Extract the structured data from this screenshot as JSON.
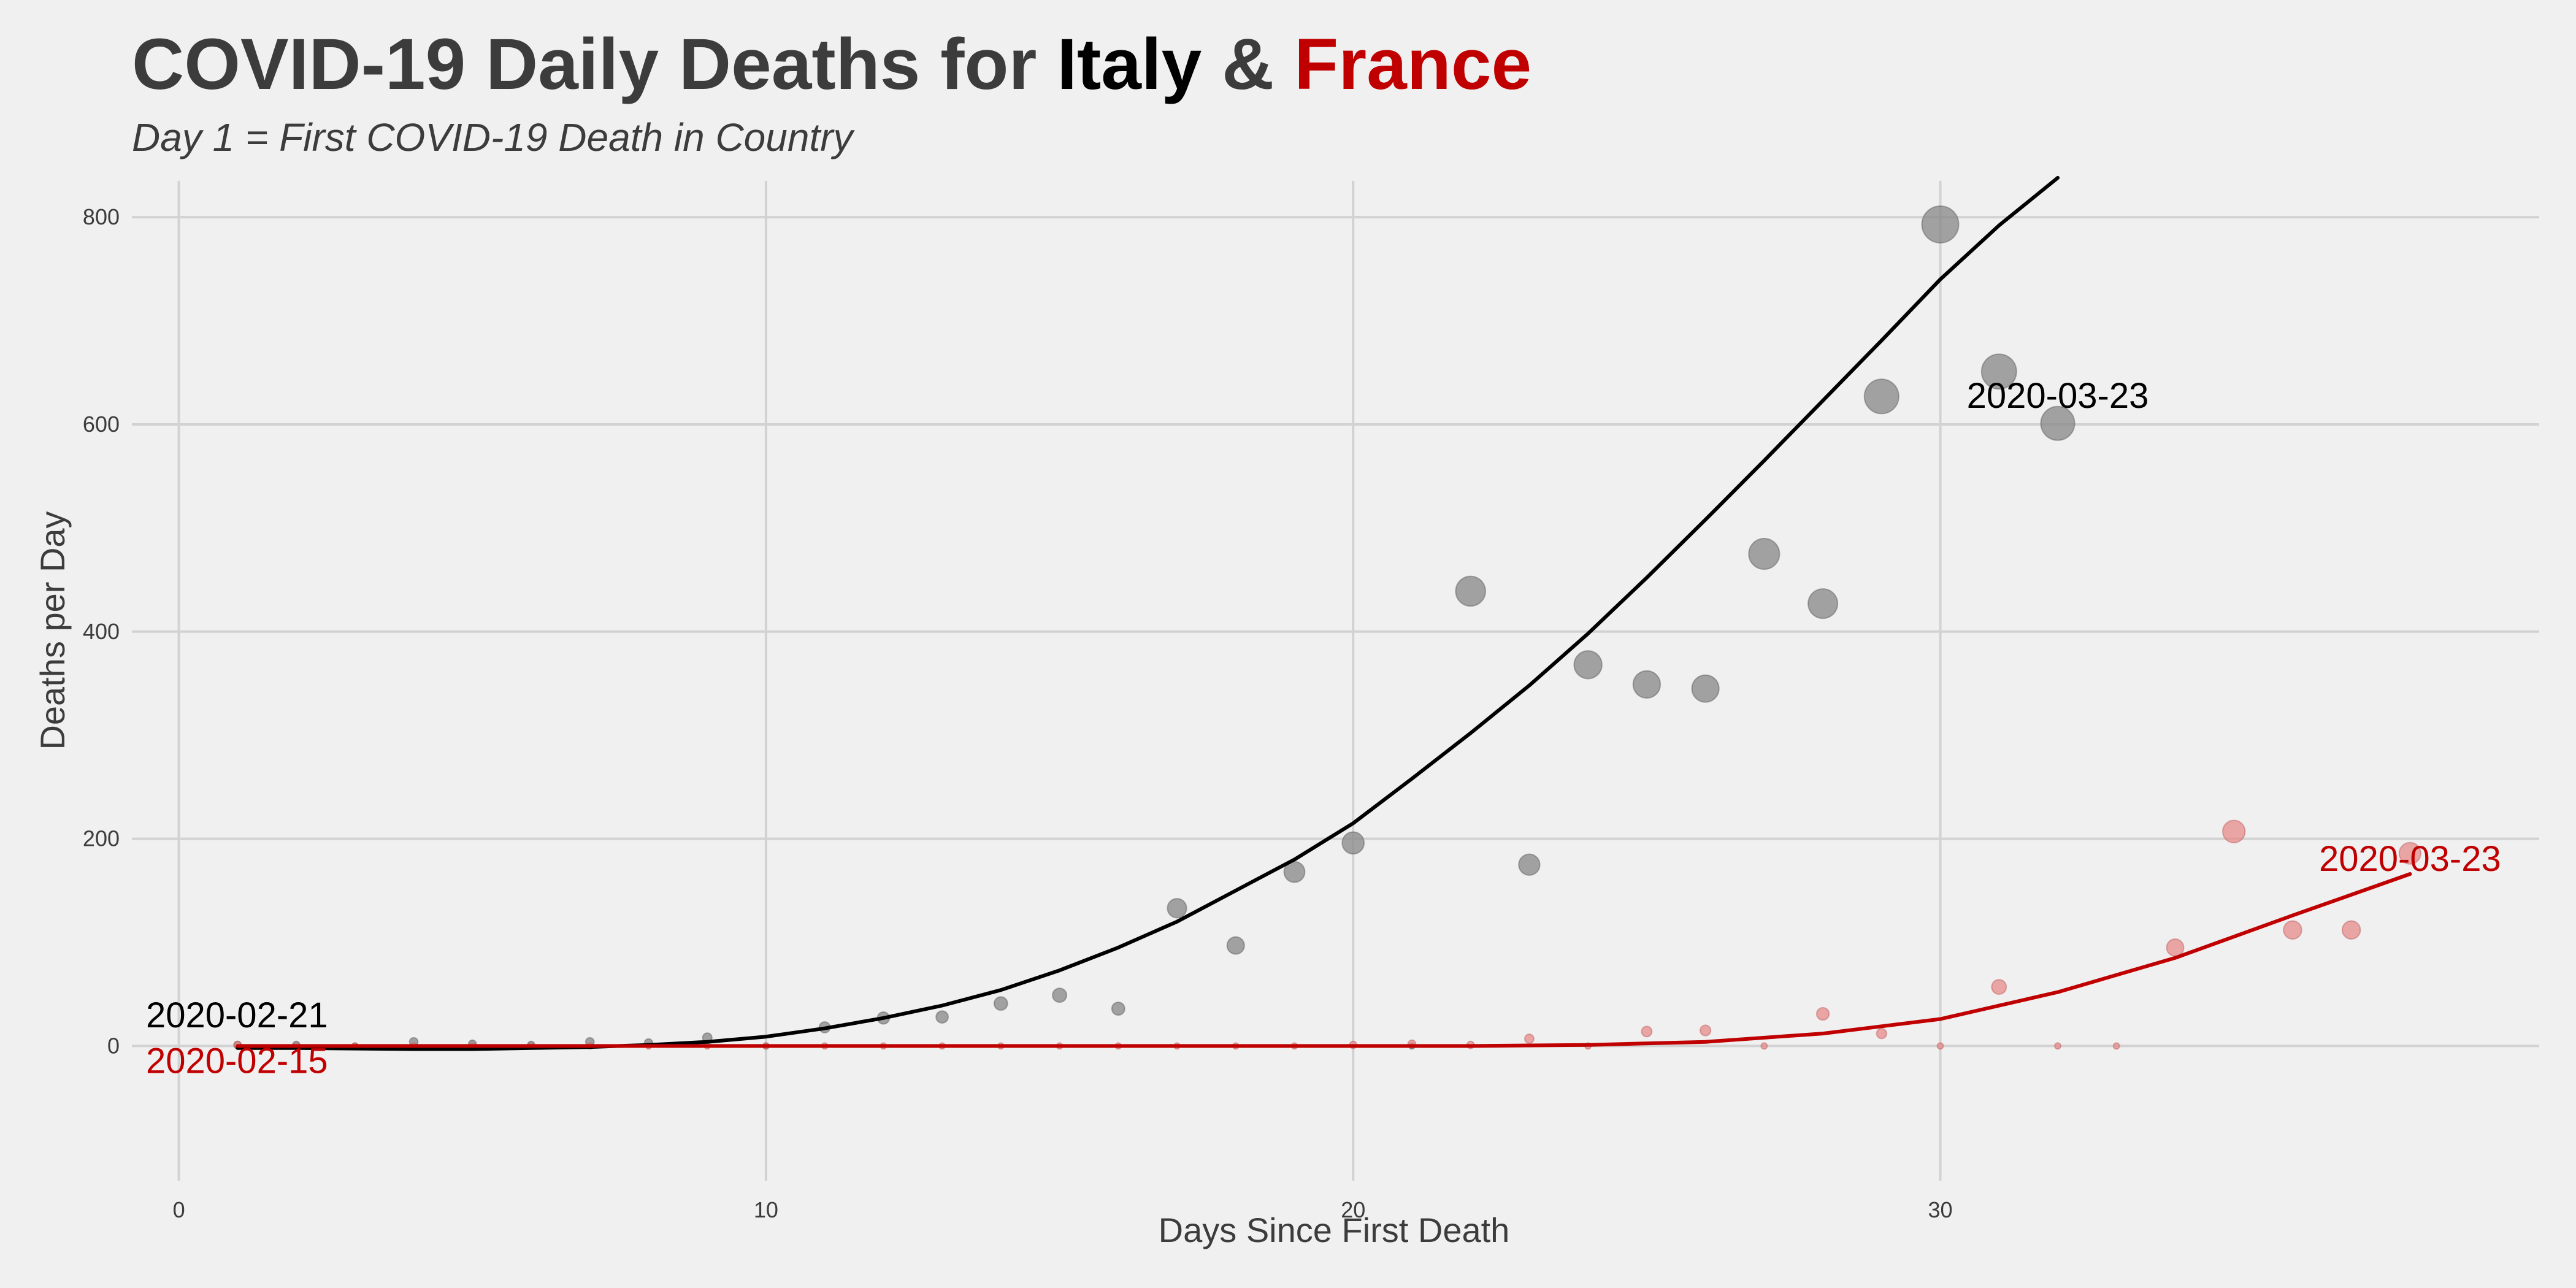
{
  "chart_data": {
    "type": "scatter",
    "title_parts": [
      "COVID-19 Daily Deaths for ",
      "Italy",
      " & ",
      "France"
    ],
    "subtitle": "Day 1 = First COVID-19 Death in Country",
    "xlabel": "Days Since First Death",
    "ylabel": "Deaths per Day",
    "xlim": [
      -0.8,
      40.2
    ],
    "ylim": [
      -130,
      835
    ],
    "x_ticks": [
      0,
      10,
      20,
      30
    ],
    "y_ticks": [
      0,
      200,
      400,
      600,
      800
    ],
    "grid": true,
    "legend": "none",
    "colors": {
      "title": "#3c3c3c",
      "italy": "#000000",
      "france": "#c00000",
      "italy_point": "#8a8a8a",
      "france_point": "#e68080",
      "background": "#f0f0f0",
      "grid": "#d2d2d2"
    },
    "series": [
      {
        "name": "Italy",
        "color": "#000000",
        "point_color": "#8a8a8a",
        "points": [
          [
            1,
            1
          ],
          [
            2,
            1
          ],
          [
            3,
            0
          ],
          [
            4,
            4
          ],
          [
            5,
            2
          ],
          [
            6,
            1
          ],
          [
            7,
            4
          ],
          [
            8,
            3
          ],
          [
            9,
            8
          ],
          [
            10,
            0
          ],
          [
            11,
            18
          ],
          [
            12,
            27
          ],
          [
            13,
            28
          ],
          [
            14,
            41
          ],
          [
            15,
            49
          ],
          [
            16,
            36
          ],
          [
            17,
            133
          ],
          [
            18,
            97
          ],
          [
            19,
            168
          ],
          [
            20,
            196
          ],
          [
            21,
            0
          ],
          [
            22,
            439
          ],
          [
            23,
            175
          ],
          [
            24,
            368
          ],
          [
            25,
            349
          ],
          [
            26,
            345
          ],
          [
            27,
            475
          ],
          [
            28,
            427
          ],
          [
            29,
            627
          ],
          [
            30,
            793
          ],
          [
            31,
            651
          ],
          [
            32,
            601
          ]
        ],
        "trend": [
          [
            1,
            -2
          ],
          [
            2,
            -2
          ],
          [
            4,
            -3
          ],
          [
            5,
            -3
          ],
          [
            6,
            -2
          ],
          [
            7,
            -1
          ],
          [
            8,
            1
          ],
          [
            9,
            4
          ],
          [
            10,
            9
          ],
          [
            11,
            17
          ],
          [
            12,
            27
          ],
          [
            13,
            39
          ],
          [
            14,
            54
          ],
          [
            15,
            73
          ],
          [
            16,
            95
          ],
          [
            17,
            120
          ],
          [
            18,
            150
          ],
          [
            19,
            180
          ],
          [
            20,
            215
          ],
          [
            21,
            258
          ],
          [
            22,
            302
          ],
          [
            23,
            348
          ],
          [
            24,
            398
          ],
          [
            25,
            452
          ],
          [
            26,
            508
          ],
          [
            27,
            565
          ],
          [
            28,
            623
          ],
          [
            29,
            681
          ],
          [
            30,
            740
          ],
          [
            31,
            792
          ],
          [
            32,
            838
          ]
        ],
        "label_start": "2020-02-21",
        "label_end": "2020-03-23"
      },
      {
        "name": "France",
        "color": "#c00000",
        "point_color": "#e68080",
        "points": [
          [
            1,
            1
          ],
          [
            2,
            0
          ],
          [
            3,
            0
          ],
          [
            4,
            0
          ],
          [
            5,
            0
          ],
          [
            6,
            0
          ],
          [
            7,
            0
          ],
          [
            8,
            0
          ],
          [
            9,
            0
          ],
          [
            10,
            0
          ],
          [
            11,
            0
          ],
          [
            12,
            0
          ],
          [
            13,
            0
          ],
          [
            14,
            0
          ],
          [
            15,
            0
          ],
          [
            16,
            0
          ],
          [
            17,
            0
          ],
          [
            18,
            0
          ],
          [
            19,
            0
          ],
          [
            20,
            1
          ],
          [
            21,
            2
          ],
          [
            22,
            1
          ],
          [
            23,
            7
          ],
          [
            24,
            0
          ],
          [
            25,
            14
          ],
          [
            26,
            15
          ],
          [
            27,
            0
          ],
          [
            28,
            31
          ],
          [
            29,
            12
          ],
          [
            30,
            0
          ],
          [
            31,
            57
          ],
          [
            32,
            0
          ],
          [
            33,
            0
          ],
          [
            34,
            95
          ],
          [
            35,
            207
          ],
          [
            36,
            112
          ],
          [
            37,
            112
          ],
          [
            38,
            186
          ]
        ],
        "trend": [
          [
            1,
            0
          ],
          [
            5,
            0
          ],
          [
            10,
            0
          ],
          [
            15,
            0
          ],
          [
            20,
            0
          ],
          [
            22,
            0
          ],
          [
            24,
            1
          ],
          [
            26,
            4
          ],
          [
            28,
            12
          ],
          [
            30,
            26
          ],
          [
            32,
            52
          ],
          [
            34,
            85
          ],
          [
            36,
            126
          ],
          [
            38,
            166
          ]
        ],
        "label_start": "2020-02-15",
        "label_end": "2020-03-23"
      }
    ]
  }
}
